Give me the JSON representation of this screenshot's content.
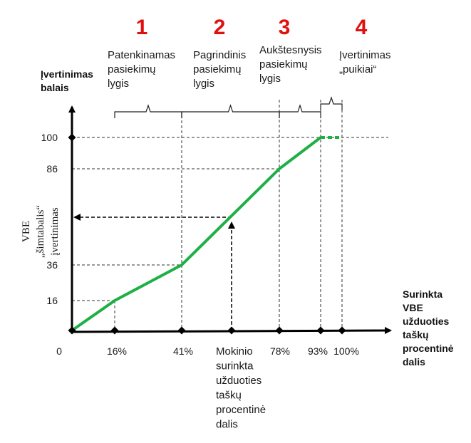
{
  "chart_data": {
    "type": "line",
    "x": [
      0,
      16,
      41,
      78,
      93,
      100
    ],
    "y": [
      0,
      16,
      36,
      86,
      100,
      100
    ],
    "x_ticks": [
      "0",
      "16%",
      "41%",
      "78%",
      "93%",
      "100%"
    ],
    "y_ticks": [
      "16",
      "36",
      "86",
      "100"
    ],
    "xlim": [
      0,
      100
    ],
    "ylim": [
      0,
      100
    ],
    "line_color": "#1db045",
    "marker_color": "#000000",
    "y_axis_title": [
      "Įvertinimas",
      "balais"
    ],
    "x_axis_title": [
      "Surinkta",
      "VBE",
      "užduoties",
      "taškų",
      "procentinė",
      "dalis"
    ],
    "y_axis_side": [
      "VBE",
      "„šimtabalis“",
      "įvertinimas"
    ],
    "example_label": [
      "Mokinio",
      "surinkta",
      "užduoties",
      "taškų",
      "procentinė",
      "dalis"
    ],
    "levels": [
      {
        "number": "1",
        "lines": [
          "Patenkinamas",
          "pasiekimų",
          "lygis"
        ]
      },
      {
        "number": "2",
        "lines": [
          "Pagrindinis",
          "pasiekimų",
          "lygis"
        ]
      },
      {
        "number": "3",
        "lines": [
          "Aukštesnysis",
          "pasiekimų",
          "lygis"
        ]
      },
      {
        "number": "4",
        "lines": [
          "Įvertinimas",
          "„puikiai“"
        ]
      }
    ]
  }
}
